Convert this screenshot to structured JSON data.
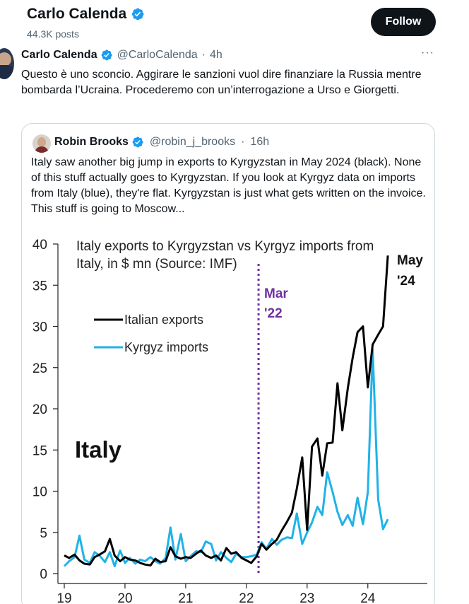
{
  "header": {
    "name": "Carlo Calenda",
    "posts": "44.3K posts",
    "follow_label": "Follow"
  },
  "tweet": {
    "name": "Carlo Calenda",
    "handle": "@CarloCalenda",
    "dot": "·",
    "time": "4h",
    "more": "···",
    "text": "Questo è uno sconcio. Aggirare le sanzioni vuol dire finanziare la Russia mentre bombarda l’Ucraina. Procederemo con un’interrogazione a Urso e Giorgetti."
  },
  "quote": {
    "name": "Robin Brooks",
    "handle": "@robin_j_brooks",
    "dot": "·",
    "time": "16h",
    "text": "Italy saw another big jump in exports to Kyrgyzstan in May 2024 (black). None of this stuff actually goes to Kyrgyzstan. If you look at Kyrgyz data on imports from Italy (blue), they're flat. Kyrgyzstan is just what gets written on the invoice. This stuff is going to Moscow..."
  },
  "colors": {
    "verified": "#1d9bf0",
    "exports": "#000000",
    "imports": "#20b2e8",
    "marker": "#7030a0"
  },
  "chart_data": {
    "type": "line",
    "title": "Italy exports to Kyrgyzstan vs Kyrgyz imports from Italy, in $ mn (Source: IMF)",
    "title_line1": "Italy exports to Kyrgyzstan vs Kyrgyz imports from",
    "title_line2": "Italy, in $ mn (Source: IMF)",
    "panel_label": "Italy",
    "xlabel": "",
    "ylabel": "",
    "xlim": [
      2019.0,
      2024.98
    ],
    "ylim": [
      0,
      40
    ],
    "y_ticks": [
      0,
      5,
      10,
      15,
      20,
      25,
      30,
      35,
      40
    ],
    "x_ticks": [
      {
        "value": 2019,
        "label": "19"
      },
      {
        "value": 2020,
        "label": "20"
      },
      {
        "value": 2021,
        "label": "21"
      },
      {
        "value": 2022,
        "label": "22"
      },
      {
        "value": 2023,
        "label": "23"
      },
      {
        "value": 2024,
        "label": "24"
      }
    ],
    "marker": {
      "x": 2022.2,
      "label_line1": "Mar",
      "label_line2": "'22"
    },
    "end_label": {
      "line1": "May",
      "line2": "'24"
    },
    "legend_position": "upper-left",
    "series": [
      {
        "name": "Italian exports",
        "color": "#000000",
        "x": [
          2019.0,
          2019.08,
          2019.17,
          2019.25,
          2019.33,
          2019.42,
          2019.5,
          2019.58,
          2019.67,
          2019.75,
          2019.83,
          2019.92,
          2020.0,
          2020.08,
          2020.17,
          2020.25,
          2020.33,
          2020.42,
          2020.5,
          2020.58,
          2020.67,
          2020.75,
          2020.83,
          2020.92,
          2021.0,
          2021.08,
          2021.17,
          2021.25,
          2021.33,
          2021.42,
          2021.5,
          2021.58,
          2021.67,
          2021.75,
          2021.83,
          2021.92,
          2022.0,
          2022.08,
          2022.17,
          2022.25,
          2022.33,
          2022.42,
          2022.5,
          2022.58,
          2022.67,
          2022.75,
          2022.83,
          2022.92,
          2023.0,
          2023.08,
          2023.17,
          2023.25,
          2023.33,
          2023.42,
          2023.5,
          2023.58,
          2023.67,
          2023.75,
          2023.83,
          2023.92,
          2024.0,
          2024.08,
          2024.17,
          2024.25,
          2024.33
        ],
        "values": [
          2.2,
          1.9,
          2.3,
          1.6,
          1.2,
          1.1,
          2.0,
          2.3,
          2.7,
          4.2,
          2.2,
          1.5,
          2.0,
          1.7,
          1.6,
          1.3,
          1.1,
          1.0,
          1.8,
          1.4,
          1.5,
          3.2,
          2.1,
          1.8,
          2.0,
          1.9,
          2.4,
          2.8,
          2.2,
          1.9,
          2.2,
          1.6,
          3.1,
          2.4,
          2.6,
          1.9,
          1.6,
          1.3,
          2.1,
          3.6,
          2.9,
          3.6,
          4.1,
          5.2,
          6.3,
          7.4,
          10.3,
          14.1,
          5.3,
          15.4,
          16.4,
          11.9,
          15.8,
          15.9,
          23.1,
          17.4,
          22.5,
          26.2,
          29.3,
          30.0,
          22.6,
          27.8,
          29.0,
          30.0,
          38.6
        ]
      },
      {
        "name": "Kyrgyz imports",
        "color": "#20b2e8",
        "x": [
          2019.0,
          2019.08,
          2019.17,
          2019.25,
          2019.33,
          2019.42,
          2019.5,
          2019.58,
          2019.67,
          2019.75,
          2019.83,
          2019.92,
          2020.0,
          2020.08,
          2020.17,
          2020.25,
          2020.33,
          2020.42,
          2020.5,
          2020.58,
          2020.67,
          2020.75,
          2020.83,
          2020.92,
          2021.0,
          2021.08,
          2021.17,
          2021.25,
          2021.33,
          2021.42,
          2021.5,
          2021.58,
          2021.67,
          2021.75,
          2021.83,
          2021.92,
          2022.0,
          2022.08,
          2022.17,
          2022.25,
          2022.33,
          2022.42,
          2022.5,
          2022.58,
          2022.67,
          2022.75,
          2022.83,
          2022.92,
          2023.0,
          2023.08,
          2023.17,
          2023.25,
          2023.33,
          2023.42,
          2023.5,
          2023.58,
          2023.67,
          2023.75,
          2023.83,
          2023.92,
          2024.0,
          2024.08,
          2024.17,
          2024.25,
          2024.33
        ],
        "values": [
          0.9,
          1.5,
          2.0,
          4.6,
          1.7,
          1.3,
          2.6,
          2.2,
          1.4,
          2.6,
          0.9,
          2.8,
          1.3,
          1.9,
          1.2,
          1.7,
          1.5,
          2.0,
          1.5,
          1.2,
          1.9,
          5.6,
          1.7,
          4.8,
          1.5,
          2.1,
          2.7,
          2.6,
          3.9,
          3.6,
          1.6,
          2.6,
          1.9,
          1.4,
          2.4,
          2.0,
          2.0,
          2.1,
          2.3,
          3.8,
          3.0,
          4.2,
          3.5,
          4.1,
          4.4,
          4.3,
          7.3,
          3.6,
          5.0,
          6.2,
          8.1,
          7.1,
          12.3,
          9.9,
          7.5,
          5.9,
          7.1,
          5.8,
          9.2,
          6.0,
          9.9,
          27.2,
          9.0,
          5.4,
          6.6
        ]
      }
    ]
  }
}
